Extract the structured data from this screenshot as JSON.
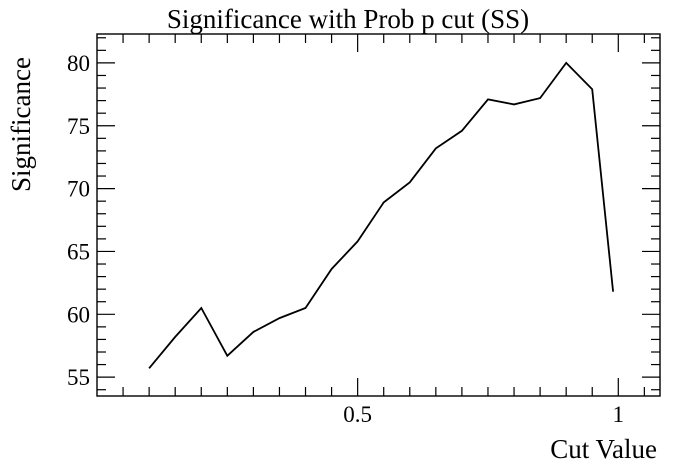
{
  "chart_data": {
    "type": "line",
    "title": "Significance with Prob p cut (SS)",
    "xlabel": "Cut Value",
    "ylabel": "Significance",
    "xlim": [
      0.0,
      1.08
    ],
    "ylim": [
      53.5,
      82.3
    ],
    "x_ticks": [
      0.5,
      1
    ],
    "x_tick_labels": [
      "0.5",
      "1"
    ],
    "y_ticks": [
      55,
      60,
      65,
      70,
      75,
      80
    ],
    "y_tick_labels": [
      "55",
      "60",
      "65",
      "70",
      "75",
      "80"
    ],
    "grid": false,
    "series": [
      {
        "x": [
          0.1,
          0.15,
          0.2,
          0.25,
          0.3,
          0.35,
          0.4,
          0.45,
          0.5,
          0.55,
          0.6,
          0.65,
          0.7,
          0.75,
          0.8,
          0.85,
          0.9,
          0.95,
          0.99
        ],
        "y": [
          55.7,
          58.2,
          60.5,
          56.7,
          58.6,
          59.7,
          60.5,
          63.6,
          65.8,
          68.9,
          70.5,
          73.2,
          74.6,
          77.1,
          76.7,
          77.2,
          80.0,
          77.9,
          61.8
        ]
      }
    ]
  }
}
